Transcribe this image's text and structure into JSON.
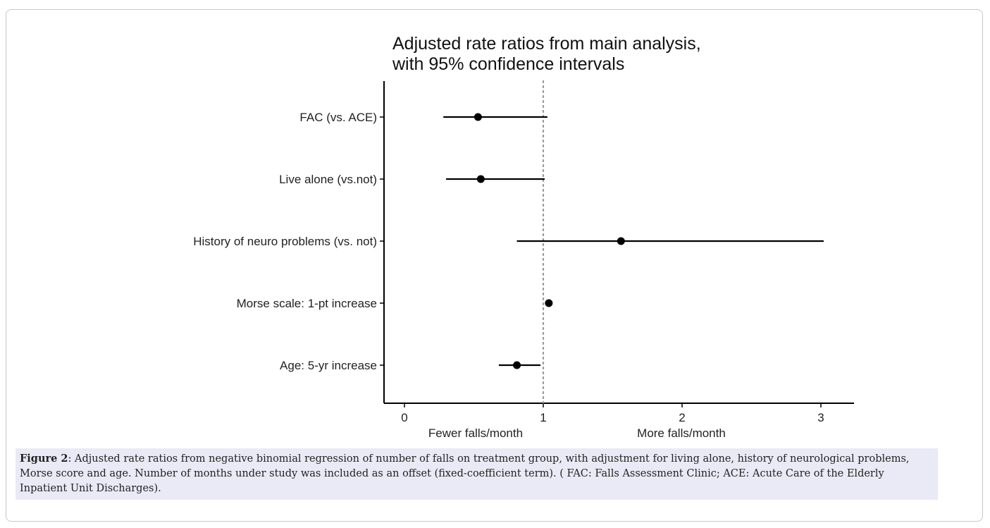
{
  "chart_data": {
    "type": "scatter",
    "title_lines": [
      "Adjusted rate ratios from main analysis,",
      "with 95% confidence intervals"
    ],
    "categories": [
      "FAC (vs. ACE)",
      "Live alone (vs.not)",
      "History of neuro problems (vs. not)",
      "Morse scale: 1-pt increase",
      "Age: 5-yr increase"
    ],
    "estimates": [
      0.53,
      0.55,
      1.56,
      1.04,
      0.81
    ],
    "ci_lower": [
      0.28,
      0.3,
      0.81,
      1.04,
      0.68
    ],
    "ci_upper": [
      1.03,
      1.01,
      3.02,
      1.04,
      0.98
    ],
    "xlim": [
      -0.1,
      3.25
    ],
    "xticks": [
      0,
      1,
      2,
      3
    ],
    "reference_line": 1,
    "x_notes": {
      "left": "Fewer falls/month",
      "right": "More falls/month"
    },
    "grid": false,
    "colors": {
      "points": "#000000",
      "reference": "#999999"
    }
  },
  "caption": {
    "label": "Figure 2",
    "text": ": Adjusted rate ratios from negative binomial regression of number of falls on treatment group, with adjustment for living alone, history of neurological problems, Morse score and age. Number of months under study was included as an offset (fixed-coefficient term). ( FAC: Falls Assessment Clinic; ACE: Acute Care of the Elderly Inpatient Unit Discharges)."
  }
}
